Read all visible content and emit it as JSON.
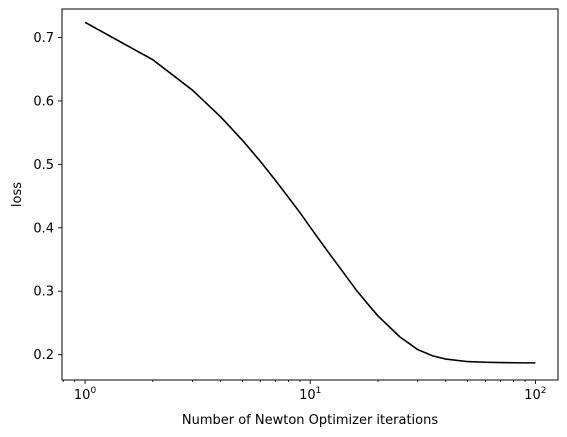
{
  "chart_data": {
    "type": "line",
    "title": "",
    "xlabel": "Number of Newton Optimizer iterations",
    "ylabel": "loss",
    "xscale": "log",
    "xlim": [
      0.79,
      126
    ],
    "ylim": [
      0.16,
      0.745
    ],
    "grid": false,
    "line_color": "#000000",
    "x_ticks": [
      {
        "value": 1,
        "base": "10",
        "exp": "0"
      },
      {
        "value": 10,
        "base": "10",
        "exp": "1"
      },
      {
        "value": 100,
        "base": "10",
        "exp": "2"
      }
    ],
    "y_ticks": [
      {
        "value": 0.2,
        "label": "0.2"
      },
      {
        "value": 0.3,
        "label": "0.3"
      },
      {
        "value": 0.4,
        "label": "0.4"
      },
      {
        "value": 0.5,
        "label": "0.5"
      },
      {
        "value": 0.6,
        "label": "0.6"
      },
      {
        "value": 0.7,
        "label": "0.7"
      }
    ],
    "series": [
      {
        "x": [
          1,
          2,
          3,
          4,
          5,
          6,
          7,
          8,
          9,
          10,
          12,
          14,
          16,
          18,
          20,
          25,
          30,
          35,
          40,
          50,
          60,
          70,
          80,
          90,
          100
        ],
        "y": [
          0.724,
          0.665,
          0.617,
          0.575,
          0.538,
          0.505,
          0.475,
          0.448,
          0.424,
          0.401,
          0.362,
          0.33,
          0.302,
          0.28,
          0.261,
          0.228,
          0.208,
          0.198,
          0.193,
          0.189,
          0.188,
          0.1875,
          0.1872,
          0.187,
          0.187
        ]
      }
    ]
  }
}
